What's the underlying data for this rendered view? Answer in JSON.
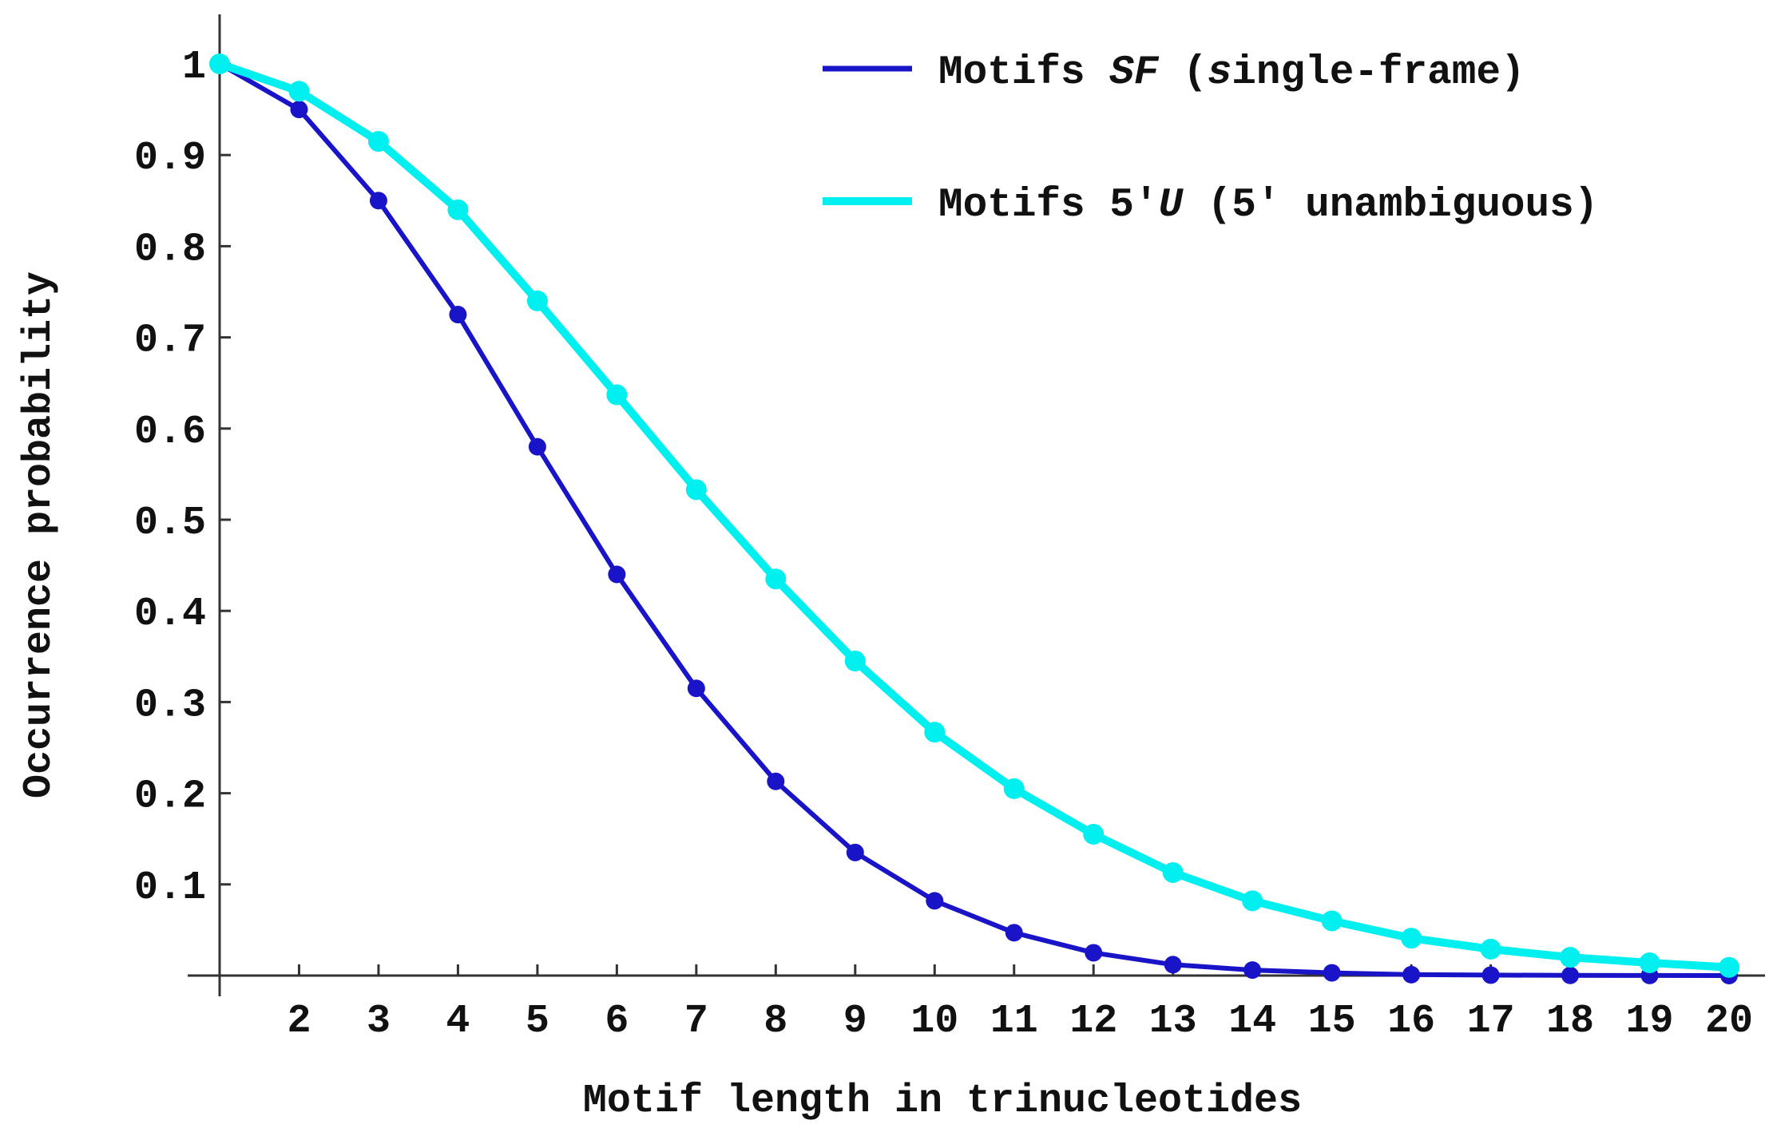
{
  "chart_data": {
    "type": "line",
    "xlabel": "Motif length in trinucleotides",
    "ylabel": "Occurrence probability",
    "xlim": [
      1,
      20
    ],
    "ylim": [
      0,
      1
    ],
    "x_ticks": [
      2,
      3,
      4,
      5,
      6,
      7,
      8,
      9,
      10,
      11,
      12,
      13,
      14,
      15,
      16,
      17,
      18,
      19,
      20
    ],
    "y_ticks": [
      0.1,
      0.2,
      0.3,
      0.4,
      0.5,
      0.6,
      0.7,
      0.8,
      0.9,
      1
    ],
    "y_tick_labels": [
      "0.1",
      "0.2",
      "0.3",
      "0.4",
      "0.5",
      "0.6",
      "0.7",
      "0.8",
      "0.9",
      "1"
    ],
    "grid": false,
    "legend_position": "top-right",
    "x": [
      1,
      2,
      3,
      4,
      5,
      6,
      7,
      8,
      9,
      10,
      11,
      12,
      13,
      14,
      15,
      16,
      17,
      18,
      19,
      20
    ],
    "series": [
      {
        "name": "Motifs SF (single-frame)",
        "legend": {
          "pre": "Motifs ",
          "italic": "SF",
          "mid": " (",
          "italic2": "s",
          "post": "ingle-frame)"
        },
        "color": "#1a14c8",
        "values": [
          1.0,
          0.95,
          0.85,
          0.725,
          0.58,
          0.44,
          0.315,
          0.213,
          0.135,
          0.082,
          0.047,
          0.025,
          0.012,
          0.006,
          0.003,
          0.001,
          0.0005,
          0.0002,
          0.0001,
          0.0
        ]
      },
      {
        "name": "Motifs 5'U (5' unambiguous)",
        "legend": {
          "pre": "Motifs 5'",
          "italic": "U",
          "mid": " (5' unambiguous)",
          "italic2": "",
          "post": ""
        },
        "color": "#00f0f0",
        "values": [
          1.0,
          0.97,
          0.915,
          0.84,
          0.74,
          0.637,
          0.533,
          0.435,
          0.345,
          0.267,
          0.205,
          0.155,
          0.113,
          0.082,
          0.06,
          0.041,
          0.029,
          0.02,
          0.014,
          0.009
        ]
      }
    ]
  }
}
